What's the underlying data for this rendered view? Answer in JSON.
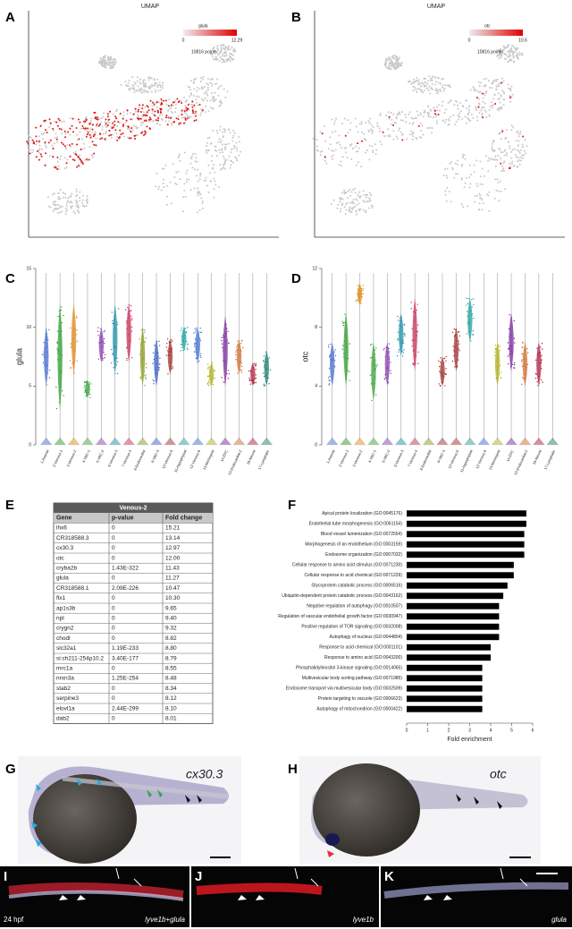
{
  "panel_labels": [
    "A",
    "B",
    "C",
    "D",
    "E",
    "F",
    "G",
    "H",
    "I",
    "J",
    "K"
  ],
  "umap": [
    {
      "title": "UMAP",
      "gene": "glula",
      "scale_min": "0",
      "scale_max": "12.29",
      "points": "10816 points."
    },
    {
      "title": "UMAP",
      "gene": "otc",
      "scale_min": "0",
      "scale_max": "10.6",
      "points": "10816 points."
    }
  ],
  "chart_data": [
    {
      "type": "violin",
      "ylabel": "glula",
      "categories": [
        "1-Arterial",
        "2-Venous-1",
        "3-Venous-2",
        "4-VBC-1",
        "5-VBC-2",
        "6-Venous-3",
        "7-Venous-4",
        "8-Endocardial",
        "9-VBC-3",
        "10-Venous-5",
        "11-Hypophysial",
        "12-Venous-6",
        "13-Meningeal",
        "14-EPC",
        "15-Endocardial-2",
        "16-Neural",
        "17-Lymphatic"
      ],
      "low": [
        5,
        3,
        6,
        4,
        7,
        6,
        7,
        5,
        5,
        6,
        8,
        7,
        5,
        5,
        6,
        5,
        5
      ],
      "high": [
        10,
        12,
        12,
        5.5,
        10,
        12,
        12,
        10,
        9,
        9,
        10,
        10,
        7,
        11,
        9,
        7,
        8
      ],
      "colors": [
        "#4a6fd0",
        "#2e9e2e",
        "#e08a1e",
        "#3da33d",
        "#8a3fb0",
        "#1f8fa8",
        "#c8305a",
        "#8a9a20",
        "#4060c0",
        "#a03030",
        "#20a0a0",
        "#4070d0",
        "#b0b020",
        "#7a2a9a",
        "#d07030",
        "#b02040",
        "#208070"
      ],
      "ylim": [
        0,
        15
      ],
      "yticks": [
        0,
        5,
        10,
        15
      ]
    },
    {
      "type": "violin",
      "ylabel": "otc",
      "categories": [
        "1-Arterial",
        "2-Venous-1",
        "3-Venous-2",
        "4-VBC-1",
        "5-VBC-2",
        "6-Venous-3",
        "7-Venous-4",
        "8-Endocardial",
        "9-VBC-3",
        "10-Venous-5",
        "11-Hypophysial",
        "12-Venous-6",
        "13-Meningeal",
        "14-EPC",
        "15-Endocardial-2",
        "16-Neural",
        "17-Lymphatic"
      ],
      "low": [
        4,
        4,
        9.5,
        3,
        4,
        6,
        5,
        null,
        4,
        5,
        7,
        null,
        4,
        5,
        4,
        4,
        null
      ],
      "high": [
        7,
        9,
        11,
        7,
        7,
        9,
        10,
        null,
        6,
        8,
        10,
        null,
        7,
        9,
        7,
        7,
        null
      ],
      "colors": [
        "#4a6fd0",
        "#2e9e2e",
        "#e08a1e",
        "#3da33d",
        "#8a3fb0",
        "#1f8fa8",
        "#c8305a",
        "#8a9a20",
        "#a03030",
        "#a03030",
        "#20a0a0",
        "#4070d0",
        "#b0b020",
        "#7a2a9a",
        "#d07030",
        "#b02040",
        "#208070"
      ],
      "ylim": [
        0,
        12
      ],
      "yticks": [
        0,
        4,
        8,
        12
      ]
    },
    {
      "type": "barh",
      "xlabel": "Fold enrichment",
      "categories": [
        "Apical protein localization (GO:0045176)",
        "Endothelial tube morphogenesis (GO:0061154)",
        "Blood vessel lumenization (GO:0072554)",
        "Morphogenesis of an endothelium (GO:0003159)",
        "Endosome organization (GO:0007032)",
        "Cellular response to amino acid stimulus (GO:0071230)",
        "Cellular response to acid chemical (GO:0071229)",
        "Glycoprotein catabolic process (GO:0006516)",
        "Ubiquitin-dependent protein catabolic process (GO:0043162)",
        "Negative regulation of autophagy (GO:0010507)",
        "Regulation of vascular endothelial growth factor (GO:0030947)",
        "Positive regulation of TOR signaling (GO:0032008)",
        "Autophagy of nucleus (GO:0044804)",
        "Response to acid chemical (GO:0001101)",
        "Response to amino acid (GO:0043200)",
        "Phosphatidylinositol 3-kinase signaling (GO:0014065)",
        "Multivesicular body sorting pathway (GO:0071985)",
        "Endosome transport via multivesicular body (GO:0032509)",
        "Protein targeting to vacuole (GO:0006623)",
        "Autophagy of mitochondrion (GO:0000422)"
      ],
      "values": [
        5.7,
        5.7,
        5.6,
        5.6,
        5.6,
        5.1,
        5.1,
        4.8,
        4.6,
        4.4,
        4.4,
        4.4,
        4.4,
        4.0,
        4.0,
        3.6,
        3.6,
        3.6,
        3.6,
        3.6
      ],
      "color": "#000000",
      "xlim": [
        0,
        6
      ],
      "xticks": [
        0,
        1,
        2,
        3,
        4,
        5,
        6
      ]
    }
  ],
  "table": {
    "title": "Venous-2",
    "header": [
      "Gene",
      "p-value",
      "Fold change"
    ],
    "rows": [
      [
        "lhx6",
        "0",
        "15.21"
      ],
      [
        "CR318588.3",
        "0",
        "13.14"
      ],
      [
        "cx30.3",
        "0",
        "12.97"
      ],
      [
        "otc",
        "0",
        "12.00"
      ],
      [
        "cryba2b",
        "1.43E-322",
        "11.43"
      ],
      [
        "glula",
        "0",
        "11.27"
      ],
      [
        "CR318588.1",
        "2.09E-226",
        "10.47"
      ],
      [
        "flx1",
        "0",
        "10.30"
      ],
      [
        "ap1s3b",
        "0",
        "9.65"
      ],
      [
        "npl",
        "0",
        "9.40"
      ],
      [
        "crygn2",
        "0",
        "9.32"
      ],
      [
        "chodl",
        "0",
        "8.82"
      ],
      [
        "slc32a1",
        "1.19E-233",
        "8.80"
      ],
      [
        "si:ch211-254p10.2",
        "3.40E-177",
        "8.79"
      ],
      [
        "mrc1a",
        "0",
        "8.55"
      ],
      [
        "nrxn3a",
        "1.25E-254",
        "8.48"
      ],
      [
        "stab2",
        "0",
        "8.34"
      ],
      [
        "serpine3",
        "0",
        "8.12"
      ],
      [
        "elovl1a",
        "2.44E-299",
        "8.10"
      ],
      [
        "dab2",
        "0",
        "8.01"
      ]
    ]
  },
  "images": [
    {
      "label": "cx30.3"
    },
    {
      "label": "otc"
    },
    {
      "stage": "24 hpf",
      "label": "lyve1b+glula"
    },
    {
      "label": "lyve1b"
    },
    {
      "label": "glula"
    }
  ]
}
